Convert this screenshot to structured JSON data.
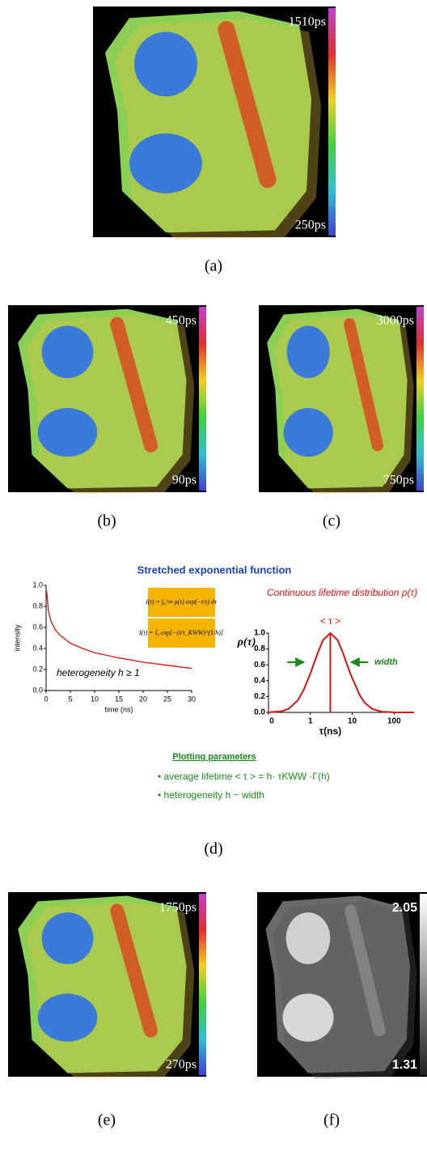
{
  "panels": {
    "a": {
      "label": "(a)",
      "scale_max": "1510ps",
      "scale_min": "250ps"
    },
    "b": {
      "label": "(b)",
      "scale_max": "450ps",
      "scale_min": "90ps"
    },
    "c": {
      "label": "(c)",
      "scale_max": "3000ps",
      "scale_min": "750ps"
    },
    "d": {
      "label": "(d)",
      "title": "Stretched exponential function",
      "formula_1": "I(t) = ∫₀^∞ ρ(τ) exp(−t/τ) dτ",
      "formula_2": "I(t) = I₀ exp[−(t/τ_KWW)^(1/h)]",
      "parameters_heading": "Plotting parameters",
      "bullets": [
        "• average lifetime < τ > = h· τKWW ·Γ(h)",
        "• heterogeneity h ~ width"
      ]
    },
    "e": {
      "label": "(e)",
      "scale_max": "1750ps",
      "scale_min": "270ps"
    },
    "f": {
      "label": "(f)",
      "scale_max": "2.05",
      "scale_min": "1.31"
    }
  },
  "chart_data": [
    {
      "type": "line",
      "xlabel": "time (ns)",
      "ylabel": "intensity",
      "annotation": "heterogeneity h ≥ 1",
      "color": "#e01010",
      "x": [
        0.1,
        0.5,
        1,
        2,
        3,
        5,
        7.5,
        10,
        15,
        20,
        25,
        30
      ],
      "values": [
        0.95,
        0.75,
        0.66,
        0.57,
        0.52,
        0.45,
        0.4,
        0.36,
        0.31,
        0.27,
        0.24,
        0.21
      ],
      "xlim": [
        0,
        30
      ],
      "xticks": [
        0,
        5,
        10,
        15,
        20,
        25,
        30
      ],
      "ylim": [
        0,
        1
      ],
      "yticks": [
        {
          "value": 0,
          "label": "0.0"
        },
        0.2,
        0.4,
        0.6,
        0.8,
        {
          "value": 1,
          "label": "1.0"
        }
      ]
    },
    {
      "type": "line",
      "title": "Continuous lifetime distribution ρ(τ)",
      "xlabel": "τ(ns)",
      "ylabel": "ρ(τ)",
      "xscale": "log",
      "color": "#e01010",
      "x": [
        0.1,
        0.2,
        0.3,
        0.5,
        0.7,
        1,
        1.5,
        2,
        3,
        4.5,
        6,
        9,
        15,
        20,
        30,
        50,
        100,
        300
      ],
      "values": [
        0.001,
        0.013,
        0.044,
        0.15,
        0.29,
        0.49,
        0.75,
        0.91,
        1,
        0.91,
        0.75,
        0.49,
        0.22,
        0.12,
        0.044,
        0.009,
        0.001,
        0
      ],
      "mean": 3,
      "mean_label": "< τ >",
      "width_label": "width",
      "xlim": [
        0.1,
        300
      ],
      "xticks": [
        {
          "value": 0.1,
          "label": "0"
        },
        1,
        10,
        100
      ],
      "ylim": [
        0,
        1
      ],
      "yticks": [
        {
          "value": 0,
          "label": "0.0"
        },
        0.2,
        0.4,
        0.6,
        0.8,
        {
          "value": 1,
          "label": "1.0"
        }
      ]
    }
  ]
}
